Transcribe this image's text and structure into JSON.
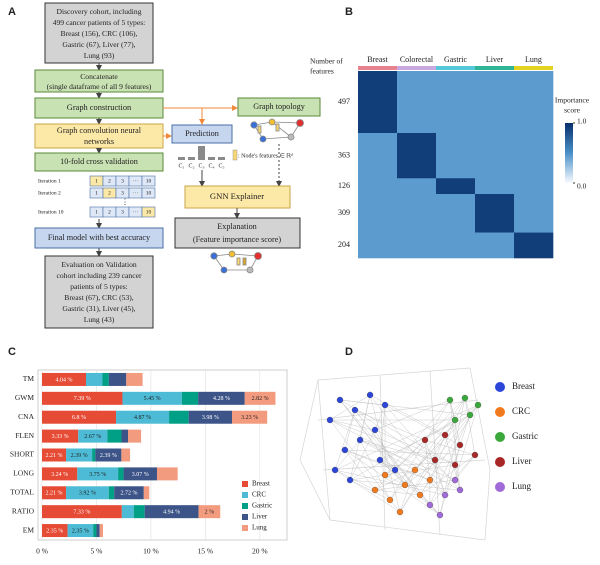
{
  "panel_a": {
    "label": "A",
    "discovery": [
      "Discovery cohort, including",
      "499 cancer patients of 5 types:",
      "Breast (156), CRC (106),",
      "Gastric (67), Liver (77),",
      "Lung (93)"
    ],
    "concatenate": [
      "Concatenate",
      "(single dataframe of all 9 features)"
    ],
    "graph_construction": "Graph construction",
    "gcn": [
      "Graph convolution neural",
      "networks"
    ],
    "cv": "10-fold cross validation",
    "iterations": [
      {
        "label": "Iteration 1",
        "cells": [
          "1",
          "2",
          "3",
          "···",
          "10"
        ]
      },
      {
        "label": "Iteration 2",
        "cells": [
          "1",
          "2",
          "3",
          "···",
          "10"
        ]
      },
      {
        "label": "Iteration 10",
        "cells": [
          "1",
          "2",
          "3",
          "···",
          "10"
        ]
      }
    ],
    "iteration_dots": "⋮",
    "final_model": "Final model with best accuracy",
    "evaluation": [
      "Evaluation on Validation",
      "cohort including 239 cancer",
      "patients of 5 types:",
      "Breast (67), CRC (53),",
      "Gastric (31), Liver (45),",
      "Lung (43)"
    ],
    "graph_topology": "Graph topology",
    "prediction": "Prediction",
    "classes": [
      "C₁",
      "C₂",
      "C₃",
      "C₄",
      "C₅"
    ],
    "node_features": ": Node's features ∈ ℝᵈ",
    "gnn_explainer": "GNN Explainer",
    "explanation": [
      "Explanation",
      "(Feature importance score)"
    ]
  },
  "chart_data": [
    {
      "type": "heatmap",
      "panel_label": "B",
      "columns": [
        "Breast",
        "Colorectal",
        "Gastric",
        "Liver",
        "Lung"
      ],
      "column_colors": [
        "#e8828f",
        "#c9a8e0",
        "#52c8d8",
        "#2fb596",
        "#e3d21f"
      ],
      "row_axis_label": [
        "Number of",
        "features"
      ],
      "rows": [
        497,
        363,
        126,
        309,
        204
      ],
      "values": [
        [
          0.93,
          0.45,
          0.45,
          0.45,
          0.45
        ],
        [
          0.45,
          0.93,
          0.45,
          0.45,
          0.45
        ],
        [
          0.45,
          0.45,
          0.93,
          0.45,
          0.45
        ],
        [
          0.45,
          0.45,
          0.45,
          0.93,
          0.45
        ],
        [
          0.45,
          0.45,
          0.45,
          0.45,
          0.93
        ]
      ],
      "colorbar_label": [
        "Importance",
        "score"
      ],
      "clim": [
        0,
        1
      ],
      "colorbar_ticks": [
        {
          "value": 1,
          "label": "1.0"
        },
        {
          "value": 0,
          "label": "0.0"
        }
      ],
      "colors": [
        "#f7fbff",
        "#4a90c8",
        "#08306b"
      ]
    },
    {
      "type": "stacked_barh",
      "panel_label": "C",
      "categories": [
        "TM",
        "GWM",
        "CNA",
        "FLEN",
        "SHORT",
        "LONG",
        "TOTAL",
        "RATIO",
        "EM"
      ],
      "series": [
        {
          "name": "Breast",
          "color": "#e64b35",
          "values": [
            4.04,
            7.39,
            6.8,
            3.33,
            2.21,
            3.24,
            2.21,
            7.33,
            2.35
          ],
          "value_labels": [
            "4.04 %",
            "7.39 %",
            "6.8 %",
            "3.33 %",
            "2.21 %",
            "3.24 %",
            "2.21 %",
            "7.33 %",
            "2.35 %"
          ]
        },
        {
          "name": "CRC",
          "color": "#4dbbd5",
          "values": [
            1.5,
            5.45,
            4.87,
            2.67,
            2.39,
            3.75,
            3.92,
            1.1,
            2.35
          ],
          "value_labels": [
            null,
            "5.45 %",
            "4.87 %",
            "2.67 %",
            "2.39 %",
            "3.75 %",
            "3.92 %",
            null,
            "2.35 %"
          ]
        },
        {
          "name": "Gastric",
          "color": "#00a087",
          "values": [
            0.6,
            1.5,
            1.8,
            1.3,
            0.3,
            0.5,
            0.5,
            1.0,
            0.3
          ],
          "value_labels": [
            null,
            null,
            null,
            null,
            null,
            null,
            null,
            null,
            null
          ]
        },
        {
          "name": "Liver",
          "color": "#3c5488",
          "values": [
            1.6,
            4.28,
            3.98,
            0.6,
            2.39,
            3.07,
            2.72,
            4.94,
            0.3
          ],
          "value_labels": [
            null,
            "4.28 %",
            "3.98 %",
            null,
            "2.39 %",
            "3.07 %",
            "2.72 %",
            "4.94 %",
            null
          ]
        },
        {
          "name": "Lung",
          "color": "#f39b7f",
          "values": [
            1.5,
            2.82,
            3.23,
            1.2,
            0.8,
            1.9,
            0.5,
            2,
            0.3
          ],
          "value_labels": [
            null,
            "2.82 %",
            "3.23 %",
            null,
            null,
            null,
            null,
            "2 %",
            null
          ]
        }
      ],
      "xlim": [
        0,
        22.5
      ],
      "xticks": [
        {
          "value": 0,
          "label": "0 %"
        },
        {
          "value": 5,
          "label": "5 %"
        },
        {
          "value": 10,
          "label": "10 %"
        },
        {
          "value": 15,
          "label": "15 %"
        },
        {
          "value": 20,
          "label": "20 %"
        }
      ],
      "grid": true,
      "legend": "lower right"
    },
    {
      "type": "scatter",
      "panel_label": "D",
      "xlim": [
        0,
        100
      ],
      "ylim": [
        0,
        100
      ],
      "legend": "right",
      "series": [
        {
          "name": "Breast",
          "color": "#2b46d9",
          "x": [
            8.8,
            14.7,
            23.5,
            32.4,
            41.2,
            17.6,
            26.5,
            35.3,
            47.1,
            11.8,
            20.6,
            38.2
          ],
          "values": [
            75,
            89.3,
            82.1,
            92.9,
            85.7,
            53.6,
            60.7,
            67.9,
            39.3,
            39.3,
            32.1,
            46.4
          ]
        },
        {
          "name": "CRC",
          "color": "#f27a1e",
          "x": [
            35.3,
            44.1,
            52.9,
            61.8,
            50,
            41.2,
            67.6,
            58.8
          ],
          "values": [
            25,
            17.9,
            28.6,
            21.4,
            9.3,
            35.7,
            32.1,
            39.3
          ]
        },
        {
          "name": "Gastric",
          "color": "#3aa83a",
          "x": [
            79.4,
            88.2,
            95.9,
            82.4,
            91.2
          ],
          "values": [
            89.3,
            90.7,
            85.7,
            75,
            78.6
          ]
        },
        {
          "name": "Liver",
          "color": "#a82828",
          "x": [
            64.7,
            76.5,
            85.3,
            94.1,
            70.6,
            82.4
          ],
          "values": [
            60.7,
            64.3,
            57.1,
            50,
            46.4,
            42.9
          ]
        },
        {
          "name": "Lung",
          "color": "#a06ad8",
          "x": [
            67.6,
            76.5,
            85.3,
            73.5,
            82.4
          ],
          "values": [
            14.3,
            21.4,
            25,
            7.1,
            32.1
          ]
        }
      ]
    }
  ]
}
